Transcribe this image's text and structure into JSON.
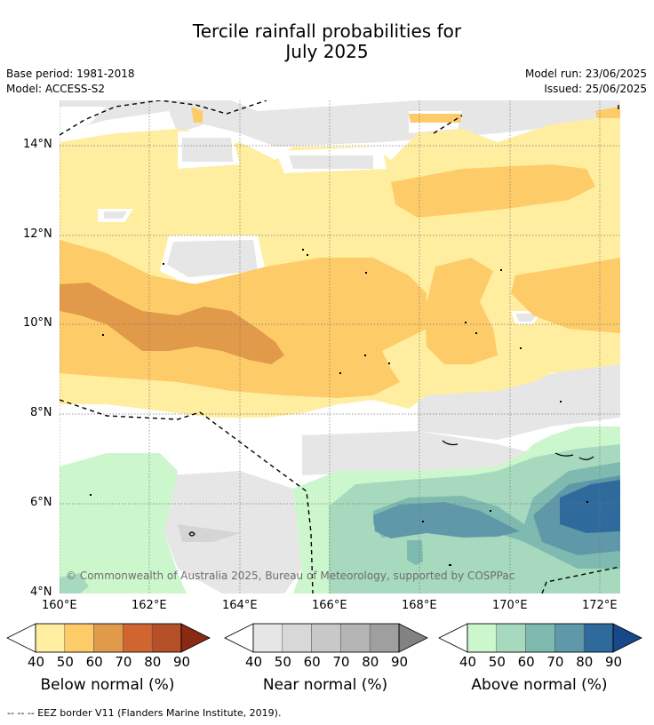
{
  "header": {
    "title_line1": "Tercile rainfall probabilities for",
    "title_line2": "July 2025",
    "base_period": "Base period: 1981-2018",
    "model": "Model: ACCESS-S2",
    "model_run": "Model run: 23/06/2025",
    "issued": "Issued: 25/06/2025"
  },
  "map": {
    "lat_labels": [
      "14°N",
      "12°N",
      "10°N",
      "8°N",
      "6°N",
      "4°N"
    ],
    "lon_labels": [
      "160°E",
      "162°E",
      "164°E",
      "166°E",
      "168°E",
      "170°E",
      "172°E"
    ],
    "copyright": "© Commonwealth of Australia 2025, Bureau of Meteorology, supported by COSPPac"
  },
  "colorbars": [
    {
      "title": "Below normal (%)",
      "ticks": [
        "40",
        "50",
        "60",
        "70",
        "80",
        "90"
      ],
      "colors": [
        "#ffeda0",
        "#fdcc68",
        "#e09a4a",
        "#d0652f",
        "#b44f27",
        "#8b2a12"
      ]
    },
    {
      "title": "Near normal (%)",
      "ticks": [
        "40",
        "50",
        "60",
        "70",
        "80",
        "90"
      ],
      "colors": [
        "#e6e6e6",
        "#d8d8d8",
        "#c8c8c8",
        "#b5b5b5",
        "#9f9f9f",
        "#828282"
      ]
    },
    {
      "title": "Above normal (%)",
      "ticks": [
        "40",
        "50",
        "60",
        "70",
        "80",
        "90"
      ],
      "colors": [
        "#ccf7cc",
        "#a6d9bd",
        "#7fbab0",
        "#5f98a8",
        "#2f6a9c",
        "#18478a"
      ]
    }
  ],
  "footer": "-- -- -- EEZ border V11 (Flanders Marine Institute, 2019)."
}
